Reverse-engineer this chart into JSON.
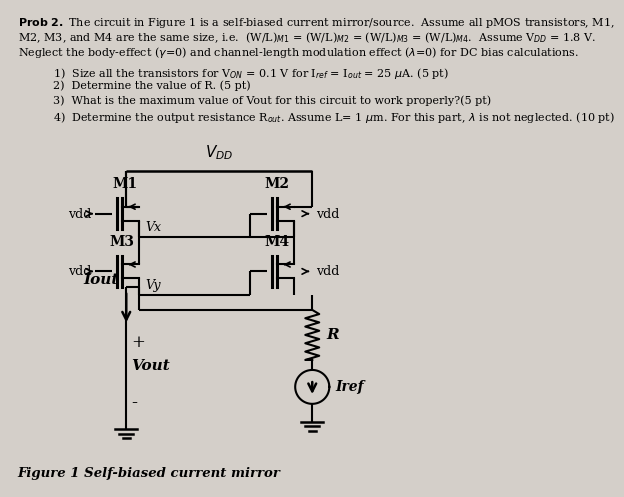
{
  "bg_color": "#d4cfc9",
  "text_color": "#111111",
  "header_line1": "Prob 2. The circuit in Figure 1 is a self-biased current mirror/source.  Assume all pMOS transistors, M1,",
  "header_line2": "M2, M3, and M4 are the same size, i.e.  (W/L)M1 = (W/L)M2 = (W/L)M3 = (W/L)M4.  Assume VDD = 1.8 V.",
  "header_line3": "Neglect the body-effect (g=0) and channel-length modulation effect (l=0) for DC bias calculations.",
  "item1": "1)  Size all the transistors for VON = 0.1 V for Iref = Iout = 25 uA. (5 pt)",
  "item2": "2)  Determine the value of R. (5 pt)",
  "item3": "3)  What is the maximum value of Vout for this circuit to work properly?(5 pt)",
  "item4": "4)  Determine the output resistance Rout. Assume L= 1 um. For this part, l is not neglected. (10 pt)",
  "caption": "Figure 1 Self-biased current mirror"
}
